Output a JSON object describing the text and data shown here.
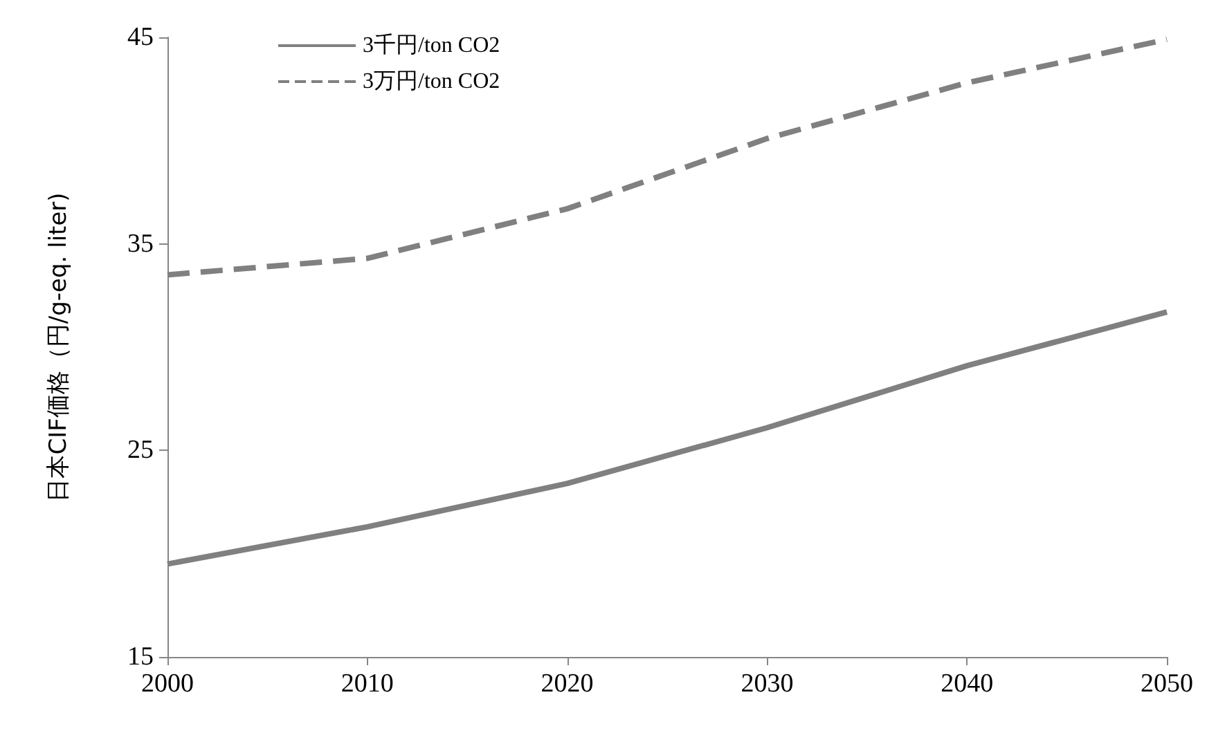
{
  "chart_data": {
    "type": "line",
    "ylabel": "日本CIF価格（円/g-eq. liter)",
    "x": [
      2000,
      2010,
      2020,
      2030,
      2040,
      2050
    ],
    "series": [
      {
        "name": "3千円/ton CO2",
        "color": "#808080",
        "line_style": "solid",
        "values": [
          19.5,
          21.3,
          23.4,
          26.1,
          29.1,
          31.7
        ]
      },
      {
        "name": "3万円/ton CO2",
        "color": "#808080",
        "line_style": "dashed",
        "values": [
          33.5,
          34.3,
          36.7,
          40.1,
          42.8,
          44.9
        ]
      }
    ],
    "xlim": [
      2000,
      2050
    ],
    "xticks": [
      2000,
      2010,
      2020,
      2030,
      2040,
      2050
    ],
    "ylim": [
      15,
      45
    ],
    "yticks": [
      15,
      25,
      35,
      45
    ],
    "grid": false,
    "legend": "top left",
    "marker": "none"
  }
}
